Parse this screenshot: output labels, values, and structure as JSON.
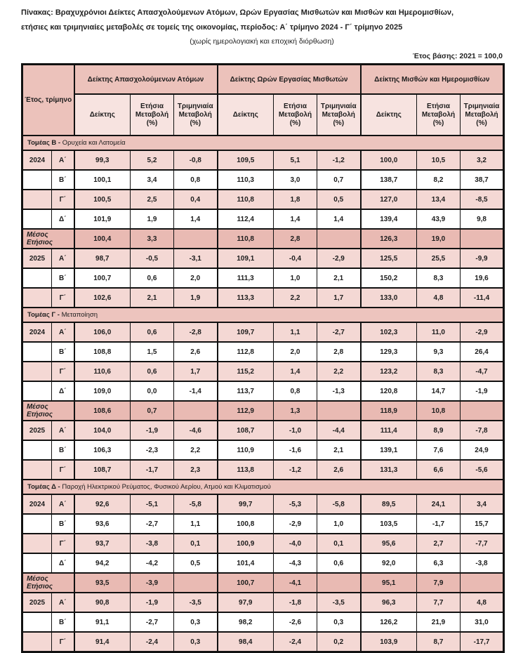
{
  "title": {
    "line1": "Πίνακας: Βραχυχρόνιοι Δείκτες Απασχολούμενων Ατόμων, Ωρών Εργασίας Μισθωτών και Μισθών και Ημερομισθίων,",
    "line2": "ετήσιες και τριμηνιαίες μεταβολές σε τομείς της οικονομίας, περίοδος: Α΄ τρίμηνο 2024 - Γ΄ τρίμηνο 2025",
    "line3": "(χωρίς ημερολογιακή και εποχική διόρθωση)"
  },
  "base_year_note": "Έτος βάσης: 2021 = 100,0",
  "colors": {
    "header_dark_pink": "#ecc2bb",
    "subheader_pink": "#f7e3e0",
    "row_pink": "#f4d8d4",
    "avg_row_pink": "#e9bab3",
    "border": "#111111"
  },
  "table": {
    "corner_label": "Έτος, τρίμηνο",
    "groups": [
      {
        "label": "Δείκτης Απασχολούμενων Ατόμων"
      },
      {
        "label": "Δείκτης Ωρών Εργασίας Μισθωτών"
      },
      {
        "label": "Δείκτης Μισθών και Ημερομισθίων"
      }
    ],
    "sub_headers": [
      "Δείκτης",
      "Ετήσια Μεταβολή (%)",
      "Τριμηνιαία Μεταβολή (%)"
    ],
    "avg_row_label": "Μέσος Ετήσιος",
    "sections": [
      {
        "label_bold": "Τομέας Β -",
        "label_rest": "Ορυχεία και Λατομεία",
        "rows": [
          {
            "year": "2024",
            "quarter": "Α΄",
            "shade": "pink",
            "values": [
              "99,3",
              "5,2",
              "-0,8",
              "109,5",
              "5,1",
              "-1,2",
              "100,0",
              "10,5",
              "3,2"
            ]
          },
          {
            "year": "",
            "quarter": "Β΄",
            "shade": "white",
            "values": [
              "100,1",
              "3,4",
              "0,8",
              "110,3",
              "3,0",
              "0,7",
              "138,7",
              "8,2",
              "38,7"
            ]
          },
          {
            "year": "",
            "quarter": "Γ΄",
            "shade": "pink",
            "values": [
              "100,5",
              "2,5",
              "0,4",
              "110,8",
              "1,8",
              "0,5",
              "127,0",
              "13,4",
              "-8,5"
            ]
          },
          {
            "year": "",
            "quarter": "Δ΄",
            "shade": "white",
            "values": [
              "101,9",
              "1,9",
              "1,4",
              "112,4",
              "1,4",
              "1,4",
              "139,4",
              "43,9",
              "9,8"
            ]
          },
          {
            "avg": true,
            "values": [
              "100,4",
              "3,3",
              "",
              "110,8",
              "2,8",
              "",
              "126,3",
              "19,0",
              ""
            ]
          },
          {
            "year": "2025",
            "quarter": "Α΄",
            "shade": "pink",
            "values": [
              "98,7",
              "-0,5",
              "-3,1",
              "109,1",
              "-0,4",
              "-2,9",
              "125,5",
              "25,5",
              "-9,9"
            ]
          },
          {
            "year": "",
            "quarter": "Β΄",
            "shade": "white",
            "values": [
              "100,7",
              "0,6",
              "2,0",
              "111,3",
              "1,0",
              "2,1",
              "150,2",
              "8,3",
              "19,6"
            ]
          },
          {
            "year": "",
            "quarter": "Γ΄",
            "shade": "pink",
            "values": [
              "102,6",
              "2,1",
              "1,9",
              "113,3",
              "2,2",
              "1,7",
              "133,0",
              "4,8",
              "-11,4"
            ]
          }
        ]
      },
      {
        "label_bold": "Τομέας Γ -",
        "label_rest": "Μεταποίηση",
        "rows": [
          {
            "year": "2024",
            "quarter": "Α΄",
            "shade": "pink",
            "values": [
              "106,0",
              "0,6",
              "-2,8",
              "109,7",
              "1,1",
              "-2,7",
              "102,3",
              "11,0",
              "-2,9"
            ]
          },
          {
            "year": "",
            "quarter": "Β΄",
            "shade": "white",
            "values": [
              "108,8",
              "1,5",
              "2,6",
              "112,8",
              "2,0",
              "2,8",
              "129,3",
              "9,3",
              "26,4"
            ]
          },
          {
            "year": "",
            "quarter": "Γ΄",
            "shade": "pink",
            "values": [
              "110,6",
              "0,6",
              "1,7",
              "115,2",
              "1,4",
              "2,2",
              "123,2",
              "8,3",
              "-4,7"
            ]
          },
          {
            "year": "",
            "quarter": "Δ΄",
            "shade": "white",
            "values": [
              "109,0",
              "0,0",
              "-1,4",
              "113,7",
              "0,8",
              "-1,3",
              "120,8",
              "14,7",
              "-1,9"
            ]
          },
          {
            "avg": true,
            "values": [
              "108,6",
              "0,7",
              "",
              "112,9",
              "1,3",
              "",
              "118,9",
              "10,8",
              ""
            ]
          },
          {
            "year": "2025",
            "quarter": "Α΄",
            "shade": "pink",
            "values": [
              "104,0",
              "-1,9",
              "-4,6",
              "108,7",
              "-1,0",
              "-4,4",
              "111,4",
              "8,9",
              "-7,8"
            ]
          },
          {
            "year": "",
            "quarter": "Β΄",
            "shade": "white",
            "values": [
              "106,3",
              "-2,3",
              "2,2",
              "110,9",
              "-1,6",
              "2,1",
              "139,1",
              "7,6",
              "24,9"
            ]
          },
          {
            "year": "",
            "quarter": "Γ΄",
            "shade": "pink",
            "values": [
              "108,7",
              "-1,7",
              "2,3",
              "113,8",
              "-1,2",
              "2,6",
              "131,3",
              "6,6",
              "-5,6"
            ]
          }
        ]
      },
      {
        "label_bold": "Τομέας Δ -",
        "label_rest": "Παροχή Ηλεκτρικού Ρεύματος, Φυσικού Αερίου, Ατμού και Κλιματισμού",
        "rows": [
          {
            "year": "2024",
            "quarter": "Α΄",
            "shade": "pink",
            "values": [
              "92,6",
              "-5,1",
              "-5,8",
              "99,7",
              "-5,3",
              "-5,8",
              "89,5",
              "24,1",
              "3,4"
            ]
          },
          {
            "year": "",
            "quarter": "Β΄",
            "shade": "white",
            "values": [
              "93,6",
              "-2,7",
              "1,1",
              "100,8",
              "-2,9",
              "1,0",
              "103,5",
              "-1,7",
              "15,7"
            ]
          },
          {
            "year": "",
            "quarter": "Γ΄",
            "shade": "pink",
            "values": [
              "93,7",
              "-3,8",
              "0,1",
              "100,9",
              "-4,0",
              "0,1",
              "95,6",
              "2,7",
              "-7,7"
            ]
          },
          {
            "year": "",
            "quarter": "Δ΄",
            "shade": "white",
            "values": [
              "94,2",
              "-4,2",
              "0,5",
              "101,4",
              "-4,3",
              "0,6",
              "92,0",
              "6,3",
              "-3,8"
            ]
          },
          {
            "avg": true,
            "values": [
              "93,5",
              "-3,9",
              "",
              "100,7",
              "-4,1",
              "",
              "95,1",
              "7,9",
              ""
            ]
          },
          {
            "year": "2025",
            "quarter": "Α΄",
            "shade": "pink",
            "values": [
              "90,8",
              "-1,9",
              "-3,5",
              "97,9",
              "-1,8",
              "-3,5",
              "96,3",
              "7,7",
              "4,8"
            ]
          },
          {
            "year": "",
            "quarter": "Β΄",
            "shade": "white",
            "values": [
              "91,1",
              "-2,7",
              "0,3",
              "98,2",
              "-2,6",
              "0,3",
              "126,2",
              "21,9",
              "31,0"
            ]
          },
          {
            "year": "",
            "quarter": "Γ΄",
            "shade": "pink",
            "values": [
              "91,4",
              "-2,4",
              "0,3",
              "98,4",
              "-2,4",
              "0,2",
              "103,9",
              "8,7",
              "-17,7"
            ]
          }
        ]
      }
    ]
  }
}
